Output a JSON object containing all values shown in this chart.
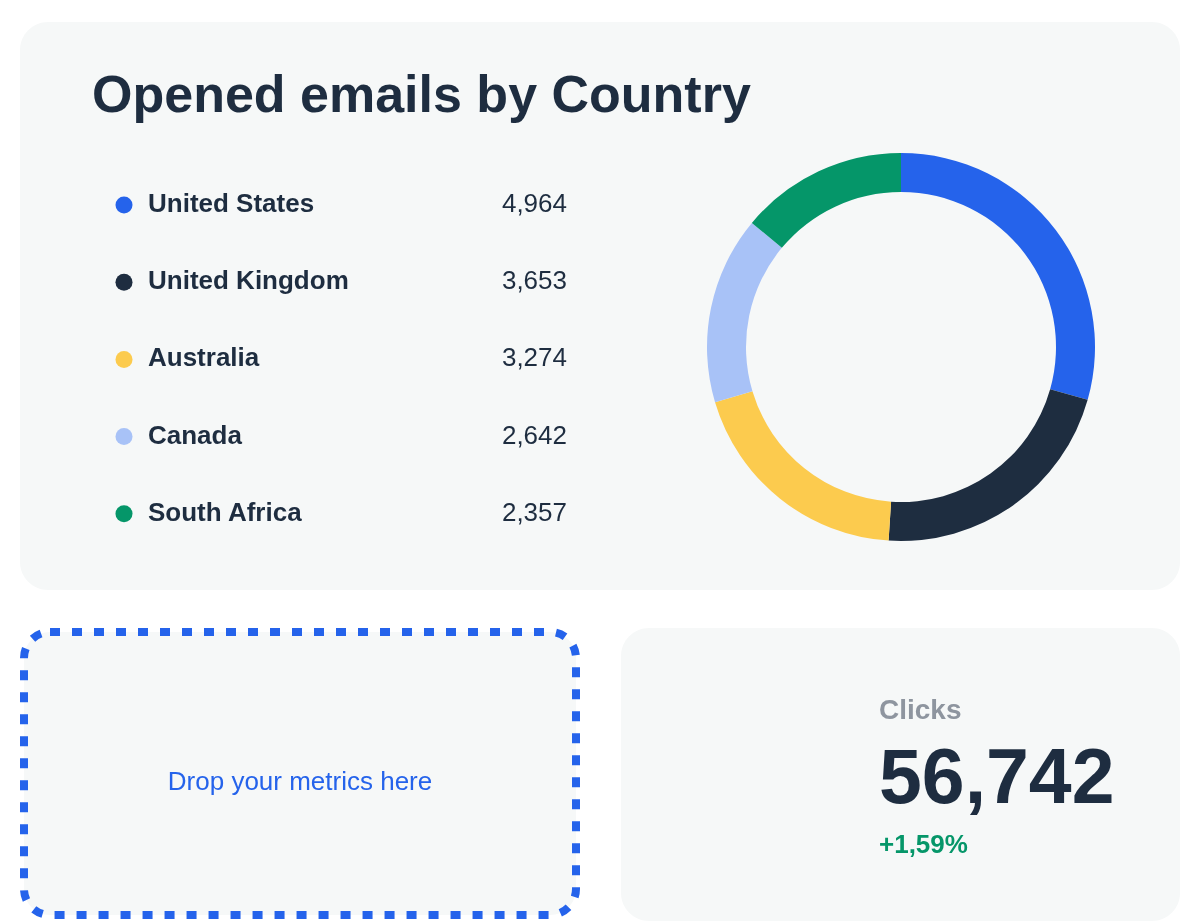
{
  "chart_data": [
    {
      "type": "donut",
      "title": "Opened emails by Country",
      "categories": [
        "United States",
        "United Kingdom",
        "Australia",
        "Canada",
        "South Africa"
      ],
      "values": [
        4964,
        3653,
        3274,
        2642,
        2357
      ],
      "value_labels": [
        "4,964",
        "3,653",
        "3,274",
        "2,642",
        "2,357"
      ],
      "colors": [
        "#2563eb",
        "#1e2d40",
        "#fccb4e",
        "#a8c2f7",
        "#059669"
      ],
      "legend": "left"
    },
    {
      "type": "other",
      "annotations": [
        "Drop your metrics here"
      ]
    },
    {
      "type": "other",
      "title": "Clicks",
      "annotations": [
        "56,742",
        "+1,59%"
      ]
    }
  ]
}
